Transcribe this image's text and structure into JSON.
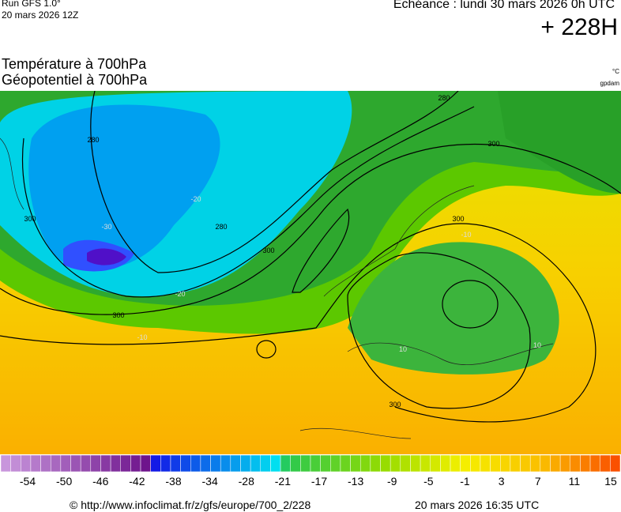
{
  "header": {
    "run": "Run GFS 1.0°",
    "run_date": "20 mars 2026 12Z",
    "echeance": "Echéance : lundi 30 mars 2026 0h UTC",
    "lead": "+ 228H"
  },
  "titles": {
    "temperature": "Température à 700hPa",
    "geopotential": "Géopotentiel à 700hPa",
    "temp_unit": "°C",
    "geo_unit": "gpdam"
  },
  "map": {
    "contour_labels": [
      "280",
      "280",
      "280",
      "300",
      "300",
      "300",
      "300",
      "300",
      "300",
      "-10",
      "-10",
      "-20",
      "-20",
      "-30",
      "10",
      "10"
    ]
  },
  "colorbar": {
    "labels": [
      "-54",
      "-50",
      "-46",
      "-42",
      "-38",
      "-34",
      "-28",
      "-21",
      "-17",
      "-13",
      "-9",
      "-5",
      "-1",
      "3",
      "7",
      "11",
      "15"
    ]
  },
  "footer": {
    "source": "© http://www.infoclimat.fr/z/gfs/europe/700_2/228",
    "generated": "20 mars 2026 16:35 UTC"
  }
}
